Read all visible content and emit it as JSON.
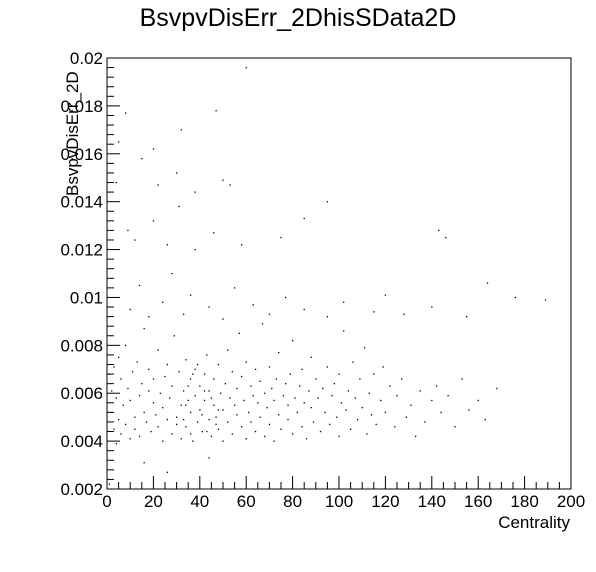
{
  "chart_data": {
    "type": "scatter",
    "title": "BsvpvDisErr_2DhisSData2D",
    "xlabel": "Centrality",
    "ylabel": "BsvpvDisErr_2D",
    "xlim": [
      0,
      200
    ],
    "ylim": [
      0.002,
      0.02
    ],
    "x_ticks": [
      "0",
      "20",
      "40",
      "60",
      "80",
      "100",
      "120",
      "140",
      "160",
      "180",
      "200"
    ],
    "y_ticks": [
      "0.002",
      "0.004",
      "0.006",
      "0.008",
      "0.01",
      "0.012",
      "0.014",
      "0.016",
      "0.018",
      "0.02"
    ],
    "grid": false,
    "legend": "none",
    "colors": {
      "marker": "#000000",
      "frame": "#000000",
      "background": "#ffffff"
    },
    "points": [
      [
        1,
        0.0068
      ],
      [
        2,
        0.0052
      ],
      [
        2,
        0.0061
      ],
      [
        3,
        0.0045
      ],
      [
        3,
        0.0071
      ],
      [
        4,
        0.0039
      ],
      [
        4,
        0.0058
      ],
      [
        5,
        0.0075
      ],
      [
        5,
        0.0049
      ],
      [
        6,
        0.0043
      ],
      [
        6,
        0.0066
      ],
      [
        7,
        0.0055
      ],
      [
        8,
        0.008
      ],
      [
        8,
        0.0047
      ],
      [
        9,
        0.0062
      ],
      [
        10,
        0.0041
      ],
      [
        10,
        0.0057
      ],
      [
        11,
        0.0069
      ],
      [
        12,
        0.005
      ],
      [
        12,
        0.0045
      ],
      [
        13,
        0.0073
      ],
      [
        14,
        0.0059
      ],
      [
        14,
        0.0042
      ],
      [
        15,
        0.0064
      ],
      [
        16,
        0.0052
      ],
      [
        16,
        0.0087
      ],
      [
        17,
        0.0048
      ],
      [
        18,
        0.0061
      ],
      [
        18,
        0.007
      ],
      [
        19,
        0.0044
      ],
      [
        20,
        0.0056
      ],
      [
        20,
        0.0066
      ],
      [
        21,
        0.0051
      ],
      [
        22,
        0.0078
      ],
      [
        22,
        0.0046
      ],
      [
        23,
        0.006
      ],
      [
        24,
        0.004
      ],
      [
        24,
        0.0054
      ],
      [
        25,
        0.0067
      ],
      [
        26,
        0.0049
      ],
      [
        26,
        0.0072
      ],
      [
        27,
        0.0058
      ],
      [
        28,
        0.0043
      ],
      [
        28,
        0.0063
      ],
      [
        29,
        0.0084
      ],
      [
        30,
        0.005
      ],
      [
        30,
        0.0047
      ],
      [
        31,
        0.0069
      ],
      [
        32,
        0.0055
      ],
      [
        32,
        0.0041
      ],
      [
        33,
        0.0061
      ],
      [
        34,
        0.0074
      ],
      [
        34,
        0.0046
      ],
      [
        35,
        0.0057
      ],
      [
        36,
        0.0052
      ],
      [
        36,
        0.0066
      ],
      [
        37,
        0.004
      ],
      [
        38,
        0.0059
      ],
      [
        38,
        0.007
      ],
      [
        39,
        0.0048
      ],
      [
        40,
        0.0063
      ],
      [
        40,
        0.0053
      ],
      [
        41,
        0.0044
      ],
      [
        42,
        0.0068
      ],
      [
        42,
        0.0057
      ],
      [
        43,
        0.0076
      ],
      [
        44,
        0.0049
      ],
      [
        44,
        0.0061
      ],
      [
        45,
        0.0042
      ],
      [
        46,
        0.0055
      ],
      [
        46,
        0.0066
      ],
      [
        47,
        0.005
      ],
      [
        48,
        0.0072
      ],
      [
        48,
        0.0045
      ],
      [
        49,
        0.006
      ],
      [
        50,
        0.0053
      ],
      [
        50,
        0.004
      ],
      [
        51,
        0.0064
      ],
      [
        52,
        0.0078
      ],
      [
        52,
        0.0048
      ],
      [
        53,
        0.0058
      ],
      [
        54,
        0.0043
      ],
      [
        54,
        0.0069
      ],
      [
        55,
        0.0055
      ],
      [
        56,
        0.0051
      ],
      [
        56,
        0.0062
      ],
      [
        57,
        0.0085
      ],
      [
        58,
        0.0046
      ],
      [
        58,
        0.0067
      ],
      [
        59,
        0.0057
      ],
      [
        60,
        0.0041
      ],
      [
        60,
        0.0073
      ],
      [
        61,
        0.0052
      ],
      [
        62,
        0.0063
      ],
      [
        62,
        0.0048
      ],
      [
        63,
        0.0059
      ],
      [
        64,
        0.007
      ],
      [
        64,
        0.0044
      ],
      [
        65,
        0.0056
      ],
      [
        66,
        0.0065
      ],
      [
        66,
        0.005
      ],
      [
        67,
        0.0089
      ],
      [
        68,
        0.0042
      ],
      [
        68,
        0.006
      ],
      [
        69,
        0.0054
      ],
      [
        70,
        0.0071
      ],
      [
        70,
        0.0047
      ],
      [
        71,
        0.0062
      ],
      [
        72,
        0.0057
      ],
      [
        72,
        0.004
      ],
      [
        73,
        0.0066
      ],
      [
        74,
        0.0051
      ],
      [
        74,
        0.0077
      ],
      [
        75,
        0.0045
      ],
      [
        76,
        0.0059
      ],
      [
        77,
        0.0064
      ],
      [
        78,
        0.0049
      ],
      [
        78,
        0.0055
      ],
      [
        79,
        0.0068
      ],
      [
        80,
        0.0043
      ],
      [
        80,
        0.0082
      ],
      [
        81,
        0.0058
      ],
      [
        82,
        0.0052
      ],
      [
        83,
        0.0063
      ],
      [
        84,
        0.0046
      ],
      [
        84,
        0.007
      ],
      [
        85,
        0.0056
      ],
      [
        86,
        0.0041
      ],
      [
        87,
        0.0061
      ],
      [
        88,
        0.0054
      ],
      [
        88,
        0.0075
      ],
      [
        89,
        0.0048
      ],
      [
        90,
        0.0066
      ],
      [
        91,
        0.0058
      ],
      [
        92,
        0.0044
      ],
      [
        93,
        0.0062
      ],
      [
        94,
        0.0052
      ],
      [
        95,
        0.0071
      ],
      [
        96,
        0.0047
      ],
      [
        97,
        0.0059
      ],
      [
        98,
        0.0064
      ],
      [
        99,
        0.005
      ],
      [
        100,
        0.0042
      ],
      [
        100,
        0.0068
      ],
      [
        101,
        0.0056
      ],
      [
        102,
        0.0086
      ],
      [
        103,
        0.0053
      ],
      [
        104,
        0.0061
      ],
      [
        105,
        0.0045
      ],
      [
        106,
        0.0073
      ],
      [
        107,
        0.0058
      ],
      [
        108,
        0.0049
      ],
      [
        109,
        0.0066
      ],
      [
        110,
        0.0054
      ],
      [
        111,
        0.0079
      ],
      [
        112,
        0.0043
      ],
      [
        113,
        0.006
      ],
      [
        114,
        0.0051
      ],
      [
        115,
        0.0068
      ],
      [
        116,
        0.0047
      ],
      [
        118,
        0.0057
      ],
      [
        119,
        0.0071
      ],
      [
        120,
        0.0052
      ],
      [
        122,
        0.0063
      ],
      [
        124,
        0.0046
      ],
      [
        125,
        0.0059
      ],
      [
        127,
        0.0066
      ],
      [
        129,
        0.005
      ],
      [
        131,
        0.0055
      ],
      [
        133,
        0.0042
      ],
      [
        135,
        0.0061
      ],
      [
        137,
        0.0048
      ],
      [
        140,
        0.0057
      ],
      [
        142,
        0.0063
      ],
      [
        144,
        0.0052
      ],
      [
        147,
        0.0059
      ],
      [
        150,
        0.0046
      ],
      [
        153,
        0.0066
      ],
      [
        156,
        0.0053
      ],
      [
        160,
        0.0057
      ],
      [
        163,
        0.0049
      ],
      [
        168,
        0.0062
      ],
      [
        10,
        0.0095
      ],
      [
        14,
        0.0105
      ],
      [
        18,
        0.0092
      ],
      [
        24,
        0.0098
      ],
      [
        28,
        0.011
      ],
      [
        33,
        0.0093
      ],
      [
        36,
        0.0101
      ],
      [
        44,
        0.0096
      ],
      [
        50,
        0.0091
      ],
      [
        55,
        0.0104
      ],
      [
        63,
        0.0097
      ],
      [
        70,
        0.0093
      ],
      [
        77,
        0.01
      ],
      [
        85,
        0.0095
      ],
      [
        95,
        0.0092
      ],
      [
        102,
        0.0098
      ],
      [
        115,
        0.0094
      ],
      [
        120,
        0.0101
      ],
      [
        128,
        0.0093
      ],
      [
        140,
        0.0096
      ],
      [
        155,
        0.0092
      ],
      [
        9,
        0.0128
      ],
      [
        12,
        0.0124
      ],
      [
        20,
        0.0132
      ],
      [
        26,
        0.0122
      ],
      [
        31,
        0.0138
      ],
      [
        38,
        0.012
      ],
      [
        46,
        0.0127
      ],
      [
        58,
        0.0122
      ],
      [
        75,
        0.0125
      ],
      [
        85,
        0.0133
      ],
      [
        143,
        0.0128
      ],
      [
        146,
        0.0125
      ],
      [
        4,
        0.0148
      ],
      [
        22,
        0.0147
      ],
      [
        30,
        0.0152
      ],
      [
        38,
        0.0144
      ],
      [
        50,
        0.0149
      ],
      [
        53,
        0.0147
      ],
      [
        95,
        0.014
      ],
      [
        5,
        0.0165
      ],
      [
        15,
        0.0158
      ],
      [
        20,
        0.0162
      ],
      [
        32,
        0.017
      ],
      [
        47,
        0.0178
      ],
      [
        8,
        0.0177
      ],
      [
        60,
        0.0196
      ],
      [
        164,
        0.0106
      ],
      [
        176,
        0.01
      ],
      [
        189,
        0.0099
      ],
      [
        1,
        0.0022
      ],
      [
        16,
        0.0031
      ],
      [
        26,
        0.0027
      ],
      [
        44,
        0.0033
      ],
      [
        34,
        0.0055
      ],
      [
        37,
        0.0068
      ],
      [
        41,
        0.0051
      ],
      [
        43,
        0.0044
      ],
      [
        35,
        0.0063
      ],
      [
        39,
        0.0072
      ],
      [
        45,
        0.0058
      ],
      [
        47,
        0.0047
      ],
      [
        33,
        0.0049
      ],
      [
        36,
        0.0043
      ],
      [
        42,
        0.0061
      ],
      [
        48,
        0.0053
      ]
    ]
  }
}
